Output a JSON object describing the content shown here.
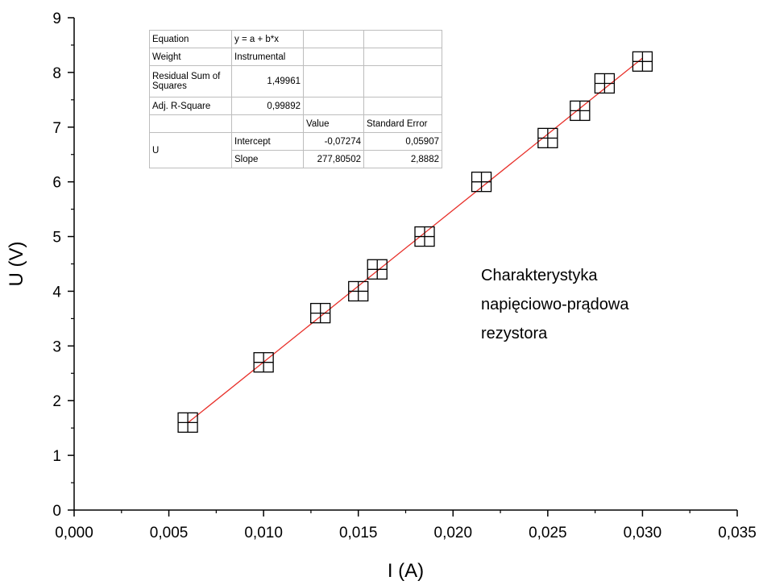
{
  "chart_data": {
    "type": "scatter",
    "xlabel": "I (A)",
    "ylabel": "U (V)",
    "xlim": [
      0,
      0.035
    ],
    "ylim": [
      0,
      9
    ],
    "x_ticks": [
      "0,000",
      "0,005",
      "0,010",
      "0,015",
      "0,020",
      "0,025",
      "0,030",
      "0,035"
    ],
    "y_ticks": [
      "0",
      "1",
      "2",
      "3",
      "4",
      "5",
      "6",
      "7",
      "8",
      "9"
    ],
    "points": [
      {
        "x": 0.006,
        "y": 1.6
      },
      {
        "x": 0.01,
        "y": 2.7
      },
      {
        "x": 0.013,
        "y": 3.6
      },
      {
        "x": 0.015,
        "y": 4.0
      },
      {
        "x": 0.016,
        "y": 4.4
      },
      {
        "x": 0.0185,
        "y": 5.0
      },
      {
        "x": 0.0215,
        "y": 6.0
      },
      {
        "x": 0.025,
        "y": 6.8
      },
      {
        "x": 0.0267,
        "y": 7.3
      },
      {
        "x": 0.028,
        "y": 7.8
      },
      {
        "x": 0.03,
        "y": 8.2
      }
    ],
    "fit_line": {
      "intercept": -0.07274,
      "slope": 277.80502,
      "x_range": [
        0.006,
        0.03
      ],
      "color": "#e8302a"
    },
    "grid": false,
    "annotation": [
      "Charakterystyka",
      "napięciowo-prądowa",
      "rezystora"
    ]
  },
  "fit_table": {
    "equation_label": "Equation",
    "equation_value": "y = a + b*x",
    "weight_label": "Weight",
    "weight_value": "Instrumental",
    "rss_label": "Residual Sum of Squares",
    "rss_value": "1,49961",
    "r2_label": "Adj. R-Square",
    "r2_value": "0,99892",
    "value_header": "Value",
    "se_header": "Standard Error",
    "var_name": "U",
    "intercept_label": "Intercept",
    "intercept_value": "-0,07274",
    "intercept_se": "0,05907",
    "slope_label": "Slope",
    "slope_value": "277,80502",
    "slope_se": "2,8882"
  }
}
